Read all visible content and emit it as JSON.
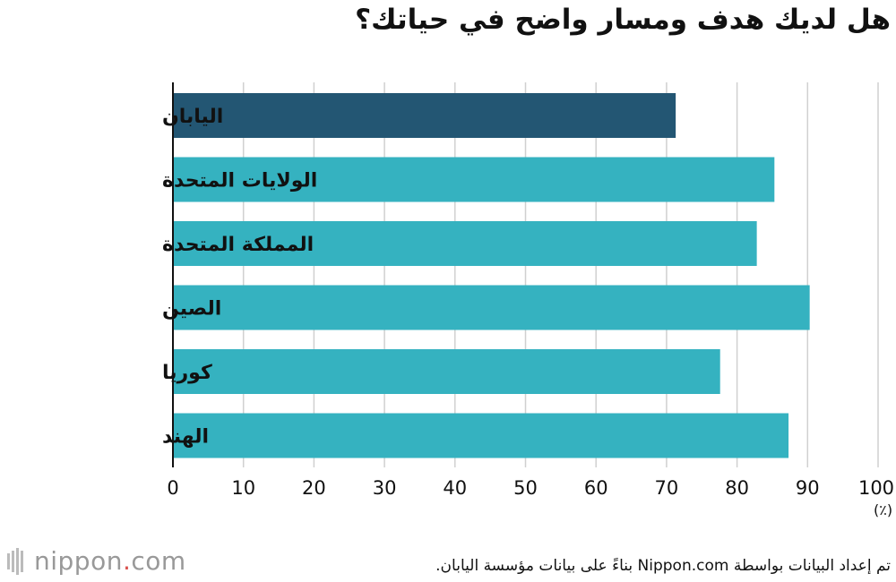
{
  "title": "هل لديك هدف ومسار واضح في حياتك؟",
  "unit_label": "(٪)",
  "source": "تم إعداد البيانات بواسطة Nippon.com بناءً على بيانات مؤسسة اليابان.",
  "logo": {
    "name": "nippon",
    "dot": ".",
    "suffix": "com"
  },
  "colors": {
    "highlight": "#235673",
    "default": "#35b2c0",
    "grid": "#d0d0d0",
    "axis": "#111111"
  },
  "chart_data": {
    "type": "bar",
    "orientation": "horizontal",
    "title": "هل لديك هدف ومسار واضح في حياتك؟",
    "categories": [
      "اليابان",
      "الولايات المتحدة",
      "المملكة المتحدة",
      "الصين",
      "كوريا",
      "الهند"
    ],
    "values": [
      71.3,
      85.3,
      82.8,
      90.3,
      77.6,
      87.3
    ],
    "highlight_index": 0,
    "xlim": [
      0,
      100
    ],
    "xticks": [
      0,
      10,
      20,
      30,
      40,
      50,
      60,
      70,
      80,
      90,
      100
    ],
    "xlabel": "(٪)",
    "grid": true
  }
}
